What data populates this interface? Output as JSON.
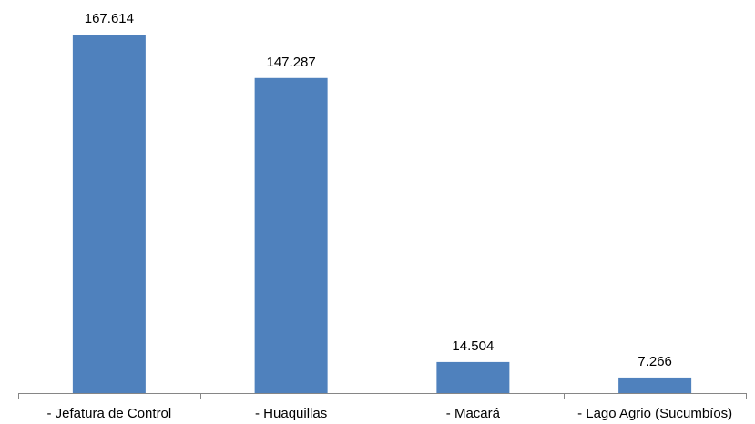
{
  "chart_data": {
    "type": "bar",
    "title": "",
    "xlabel": "",
    "ylabel": "",
    "categories": [
      "- Jefatura de Control",
      "- Huaquillas",
      "- Macará",
      "- Lago Agrio (Sucumbíos)"
    ],
    "values": [
      167614,
      147287,
      14504,
      7266
    ],
    "value_labels": [
      "167.614",
      "147.287",
      "14.504",
      "7.266"
    ],
    "ylim": [
      0,
      167614
    ],
    "grid": false,
    "legend": "none",
    "bar_color": "#4F81BD",
    "axis_color": "#868686"
  }
}
